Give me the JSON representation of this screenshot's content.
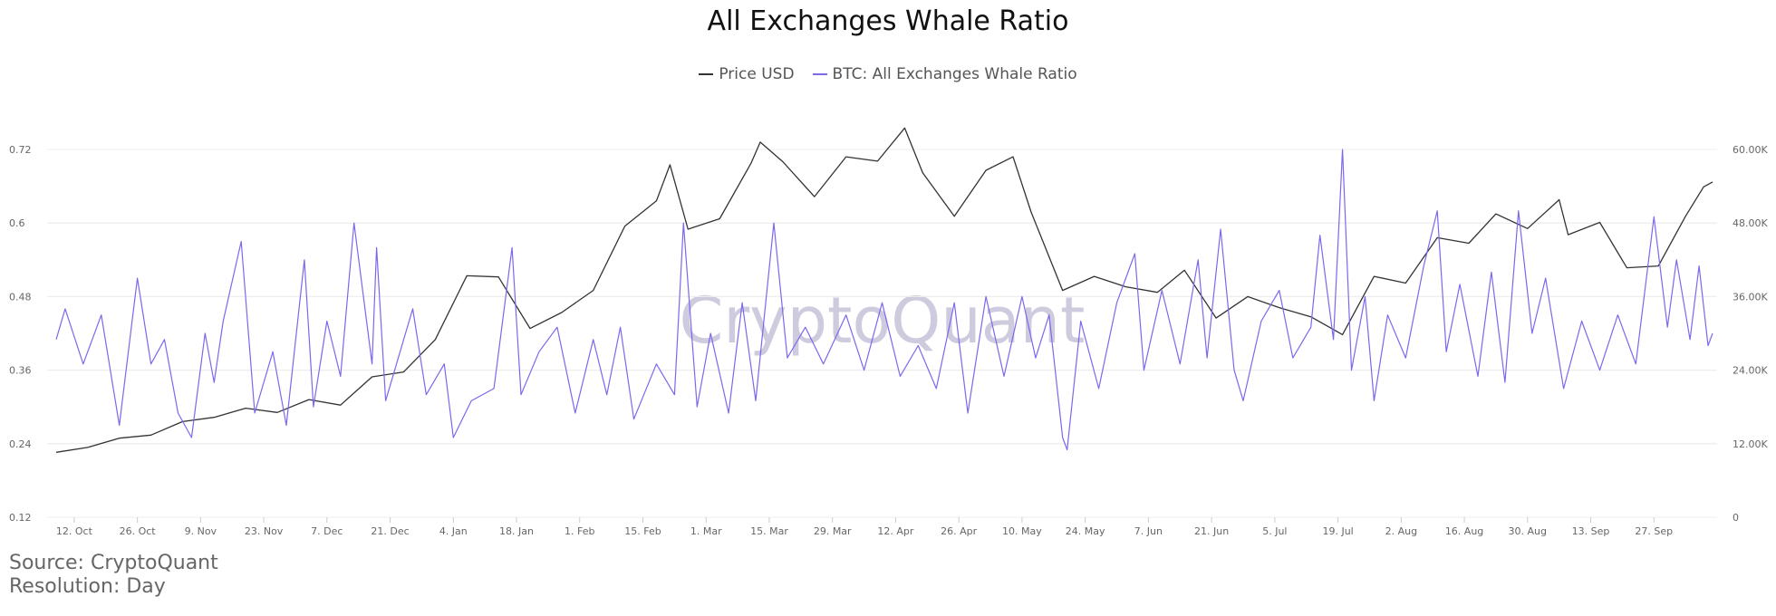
{
  "title": "All Exchanges Whale Ratio",
  "legend": [
    {
      "label": "Price USD",
      "color": "#333333"
    },
    {
      "label": "BTC: All Exchanges Whale Ratio",
      "color": "#7b68ee"
    }
  ],
  "watermark": "CryptoQuant",
  "source": "Source: CryptoQuant",
  "resolution": "Resolution: Day",
  "chart_data": {
    "type": "line",
    "x_ticks": [
      "12. Oct",
      "26. Oct",
      "9. Nov",
      "23. Nov",
      "7. Dec",
      "21. Dec",
      "4. Jan",
      "18. Jan",
      "1. Feb",
      "15. Feb",
      "1. Mar",
      "15. Mar",
      "29. Mar",
      "12. Apr",
      "26. Apr",
      "10. May",
      "24. May",
      "7. Jun",
      "21. Jun",
      "5. Jul",
      "19. Jul",
      "2. Aug",
      "16. Aug",
      "30. Aug",
      "13. Sep",
      "27. Sep"
    ],
    "x_start": "2020-10-06",
    "x_end": "2021-10-11",
    "y_left": {
      "min": 0.12,
      "max": 0.72,
      "ticks": [
        "0.12",
        "0.24",
        "0.36",
        "0.48",
        "0.6",
        "0.72"
      ]
    },
    "y_right": {
      "min": 0,
      "max": 60000,
      "ticks": [
        "0",
        "12.00K",
        "24.00K",
        "36.00K",
        "48.00K",
        "60.00K"
      ]
    },
    "grid": true,
    "legend_position": "top-center",
    "series": [
      {
        "name": "Price USD",
        "axis": "right",
        "color": "#333333",
        "points": [
          [
            "2020-10-08",
            10600
          ],
          [
            "2020-10-15",
            11400
          ],
          [
            "2020-10-22",
            12900
          ],
          [
            "2020-10-29",
            13400
          ],
          [
            "2020-11-05",
            15600
          ],
          [
            "2020-11-12",
            16300
          ],
          [
            "2020-11-19",
            17800
          ],
          [
            "2020-11-26",
            17100
          ],
          [
            "2020-12-03",
            19200
          ],
          [
            "2020-12-10",
            18300
          ],
          [
            "2020-12-17",
            22900
          ],
          [
            "2020-12-24",
            23700
          ],
          [
            "2020-12-31",
            29000
          ],
          [
            "2021-01-07",
            39400
          ],
          [
            "2021-01-14",
            39200
          ],
          [
            "2021-01-21",
            30800
          ],
          [
            "2021-01-28",
            33400
          ],
          [
            "2021-02-04",
            37000
          ],
          [
            "2021-02-11",
            47500
          ],
          [
            "2021-02-18",
            51600
          ],
          [
            "2021-02-21",
            57500
          ],
          [
            "2021-02-25",
            47000
          ],
          [
            "2021-03-04",
            48700
          ],
          [
            "2021-03-11",
            57800
          ],
          [
            "2021-03-13",
            61200
          ],
          [
            "2021-03-18",
            58000
          ],
          [
            "2021-03-25",
            52300
          ],
          [
            "2021-04-01",
            58800
          ],
          [
            "2021-04-08",
            58100
          ],
          [
            "2021-04-14",
            63500
          ],
          [
            "2021-04-18",
            56200
          ],
          [
            "2021-04-25",
            49100
          ],
          [
            "2021-05-02",
            56600
          ],
          [
            "2021-05-08",
            58800
          ],
          [
            "2021-05-12",
            49800
          ],
          [
            "2021-05-19",
            37000
          ],
          [
            "2021-05-26",
            39300
          ],
          [
            "2021-06-02",
            37600
          ],
          [
            "2021-06-09",
            36700
          ],
          [
            "2021-06-15",
            40300
          ],
          [
            "2021-06-22",
            32500
          ],
          [
            "2021-06-29",
            36000
          ],
          [
            "2021-07-06",
            34200
          ],
          [
            "2021-07-13",
            32700
          ],
          [
            "2021-07-20",
            29800
          ],
          [
            "2021-07-27",
            39300
          ],
          [
            "2021-08-03",
            38200
          ],
          [
            "2021-08-10",
            45600
          ],
          [
            "2021-08-17",
            44700
          ],
          [
            "2021-08-23",
            49500
          ],
          [
            "2021-08-30",
            47100
          ],
          [
            "2021-09-06",
            51800
          ],
          [
            "2021-09-08",
            46100
          ],
          [
            "2021-09-15",
            48100
          ],
          [
            "2021-09-21",
            40700
          ],
          [
            "2021-09-28",
            41000
          ],
          [
            "2021-10-04",
            49100
          ],
          [
            "2021-10-08",
            53900
          ],
          [
            "2021-10-10",
            54700
          ]
        ]
      },
      {
        "name": "BTC: All Exchanges Whale Ratio",
        "axis": "left",
        "color": "#7b68ee",
        "points": [
          [
            "2020-10-08",
            0.41
          ],
          [
            "2020-10-10",
            0.46
          ],
          [
            "2020-10-14",
            0.37
          ],
          [
            "2020-10-18",
            0.45
          ],
          [
            "2020-10-22",
            0.27
          ],
          [
            "2020-10-26",
            0.51
          ],
          [
            "2020-10-29",
            0.37
          ],
          [
            "2020-11-01",
            0.41
          ],
          [
            "2020-11-04",
            0.29
          ],
          [
            "2020-11-07",
            0.25
          ],
          [
            "2020-11-10",
            0.42
          ],
          [
            "2020-11-12",
            0.34
          ],
          [
            "2020-11-14",
            0.44
          ],
          [
            "2020-11-18",
            0.57
          ],
          [
            "2020-11-21",
            0.29
          ],
          [
            "2020-11-25",
            0.39
          ],
          [
            "2020-11-28",
            0.27
          ],
          [
            "2020-12-02",
            0.54
          ],
          [
            "2020-12-04",
            0.3
          ],
          [
            "2020-12-07",
            0.44
          ],
          [
            "2020-12-10",
            0.35
          ],
          [
            "2020-12-13",
            0.6
          ],
          [
            "2020-12-17",
            0.37
          ],
          [
            "2020-12-18",
            0.56
          ],
          [
            "2020-12-20",
            0.31
          ],
          [
            "2020-12-26",
            0.46
          ],
          [
            "2020-12-29",
            0.32
          ],
          [
            "2021-01-02",
            0.37
          ],
          [
            "2021-01-04",
            0.25
          ],
          [
            "2021-01-08",
            0.31
          ],
          [
            "2021-01-13",
            0.33
          ],
          [
            "2021-01-17",
            0.56
          ],
          [
            "2021-01-19",
            0.32
          ],
          [
            "2021-01-23",
            0.39
          ],
          [
            "2021-01-27",
            0.43
          ],
          [
            "2021-01-31",
            0.29
          ],
          [
            "2021-02-04",
            0.41
          ],
          [
            "2021-02-07",
            0.32
          ],
          [
            "2021-02-10",
            0.43
          ],
          [
            "2021-02-13",
            0.28
          ],
          [
            "2021-02-18",
            0.37
          ],
          [
            "2021-02-22",
            0.32
          ],
          [
            "2021-02-24",
            0.6
          ],
          [
            "2021-02-27",
            0.3
          ],
          [
            "2021-03-02",
            0.42
          ],
          [
            "2021-03-06",
            0.29
          ],
          [
            "2021-03-09",
            0.47
          ],
          [
            "2021-03-12",
            0.31
          ],
          [
            "2021-03-16",
            0.6
          ],
          [
            "2021-03-19",
            0.38
          ],
          [
            "2021-03-23",
            0.43
          ],
          [
            "2021-03-27",
            0.37
          ],
          [
            "2021-04-01",
            0.45
          ],
          [
            "2021-04-05",
            0.36
          ],
          [
            "2021-04-09",
            0.47
          ],
          [
            "2021-04-13",
            0.35
          ],
          [
            "2021-04-17",
            0.4
          ],
          [
            "2021-04-21",
            0.33
          ],
          [
            "2021-04-25",
            0.47
          ],
          [
            "2021-04-28",
            0.29
          ],
          [
            "2021-05-02",
            0.48
          ],
          [
            "2021-05-06",
            0.35
          ],
          [
            "2021-05-10",
            0.48
          ],
          [
            "2021-05-13",
            0.38
          ],
          [
            "2021-05-16",
            0.45
          ],
          [
            "2021-05-19",
            0.25
          ],
          [
            "2021-05-20",
            0.23
          ],
          [
            "2021-05-23",
            0.44
          ],
          [
            "2021-05-27",
            0.33
          ],
          [
            "2021-05-31",
            0.47
          ],
          [
            "2021-06-04",
            0.55
          ],
          [
            "2021-06-06",
            0.36
          ],
          [
            "2021-06-10",
            0.49
          ],
          [
            "2021-06-14",
            0.37
          ],
          [
            "2021-06-18",
            0.54
          ],
          [
            "2021-06-20",
            0.38
          ],
          [
            "2021-06-23",
            0.59
          ],
          [
            "2021-06-26",
            0.36
          ],
          [
            "2021-06-28",
            0.31
          ],
          [
            "2021-07-02",
            0.44
          ],
          [
            "2021-07-06",
            0.49
          ],
          [
            "2021-07-09",
            0.38
          ],
          [
            "2021-07-13",
            0.43
          ],
          [
            "2021-07-15",
            0.58
          ],
          [
            "2021-07-18",
            0.41
          ],
          [
            "2021-07-20",
            0.72
          ],
          [
            "2021-07-22",
            0.36
          ],
          [
            "2021-07-25",
            0.48
          ],
          [
            "2021-07-27",
            0.31
          ],
          [
            "2021-07-30",
            0.45
          ],
          [
            "2021-08-03",
            0.38
          ],
          [
            "2021-08-07",
            0.53
          ],
          [
            "2021-08-10",
            0.62
          ],
          [
            "2021-08-12",
            0.39
          ],
          [
            "2021-08-15",
            0.5
          ],
          [
            "2021-08-19",
            0.35
          ],
          [
            "2021-08-22",
            0.52
          ],
          [
            "2021-08-25",
            0.34
          ],
          [
            "2021-08-28",
            0.62
          ],
          [
            "2021-08-31",
            0.42
          ],
          [
            "2021-09-03",
            0.51
          ],
          [
            "2021-09-07",
            0.33
          ],
          [
            "2021-09-11",
            0.44
          ],
          [
            "2021-09-15",
            0.36
          ],
          [
            "2021-09-19",
            0.45
          ],
          [
            "2021-09-23",
            0.37
          ],
          [
            "2021-09-27",
            0.61
          ],
          [
            "2021-09-30",
            0.43
          ],
          [
            "2021-10-02",
            0.54
          ],
          [
            "2021-10-05",
            0.41
          ],
          [
            "2021-10-07",
            0.53
          ],
          [
            "2021-10-09",
            0.4
          ],
          [
            "2021-10-10",
            0.42
          ]
        ]
      }
    ]
  }
}
